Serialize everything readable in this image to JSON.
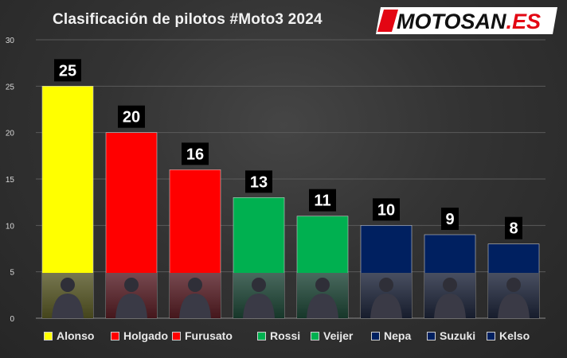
{
  "title": "Clasificación de pilotos #Moto3 2024",
  "logo": {
    "text": "MOTOSAN",
    "suffix": ".ES"
  },
  "chart_data": {
    "type": "bar",
    "categories": [
      "Alonso",
      "Holgado",
      "Furusato",
      "Rossi",
      "Veijer",
      "Nepa",
      "Suzuki",
      "Kelso"
    ],
    "values": [
      25,
      20,
      16,
      13,
      11,
      10,
      9,
      8
    ],
    "colors": [
      "#ffff00",
      "#ff0000",
      "#ff0000",
      "#00b050",
      "#00b050",
      "#002060",
      "#002060",
      "#002060"
    ],
    "ylim": [
      0,
      30
    ],
    "yticks": [
      0,
      5,
      10,
      15,
      20,
      25,
      30
    ],
    "grid": true,
    "legend_position": "bottom",
    "data_labels": true
  }
}
